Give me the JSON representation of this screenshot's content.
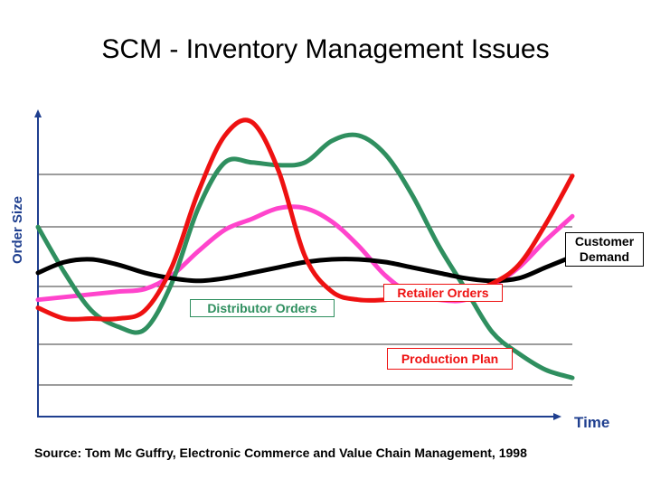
{
  "title": "SCM - Inventory Management Issues",
  "chart_data": {
    "type": "line",
    "ylabel": "Order Size",
    "xlabel": "Time",
    "grid": true,
    "x": [
      0,
      1,
      2,
      3,
      4,
      5,
      6,
      7,
      8,
      9,
      10,
      11,
      12,
      13,
      14,
      15,
      16,
      17,
      18,
      19,
      20
    ],
    "ylim": [
      0,
      100
    ],
    "series": [
      {
        "name": "Customer Demand",
        "color": "#000000",
        "values": [
          44,
          48,
          49,
          47,
          44,
          42,
          41,
          42,
          44,
          46,
          48,
          49,
          49,
          48,
          46,
          44,
          42,
          41,
          42,
          46,
          50
        ]
      },
      {
        "name": "Retailer Orders",
        "color": "#ff44cc",
        "values": [
          34,
          35,
          36,
          37,
          38,
          43,
          52,
          60,
          64,
          68,
          68,
          63,
          54,
          43,
          36,
          34,
          34,
          39,
          46,
          56,
          65
        ]
      },
      {
        "name": "Distributor Orders",
        "color": "#2f8f5f",
        "values": [
          61,
          44,
          30,
          24,
          23,
          40,
          68,
          85,
          85,
          84,
          85,
          93,
          95,
          88,
          73,
          54,
          38,
          22,
          14,
          8,
          5
        ]
      },
      {
        "name": "Production Plan",
        "color": "#ee1111",
        "values": [
          31,
          27,
          27,
          27,
          30,
          46,
          74,
          95,
          100,
          82,
          50,
          37,
          34,
          34,
          35,
          36,
          37,
          40,
          47,
          62,
          80
        ]
      }
    ]
  },
  "labels": {
    "customer_demand": "Customer Demand",
    "retailer_orders": "Retailer Orders",
    "distributor_orders": "Distributor Orders",
    "production_plan": "Production Plan"
  },
  "source": "Source: Tom Mc Guffry, Electronic Commerce and Value Chain Management, 1998"
}
